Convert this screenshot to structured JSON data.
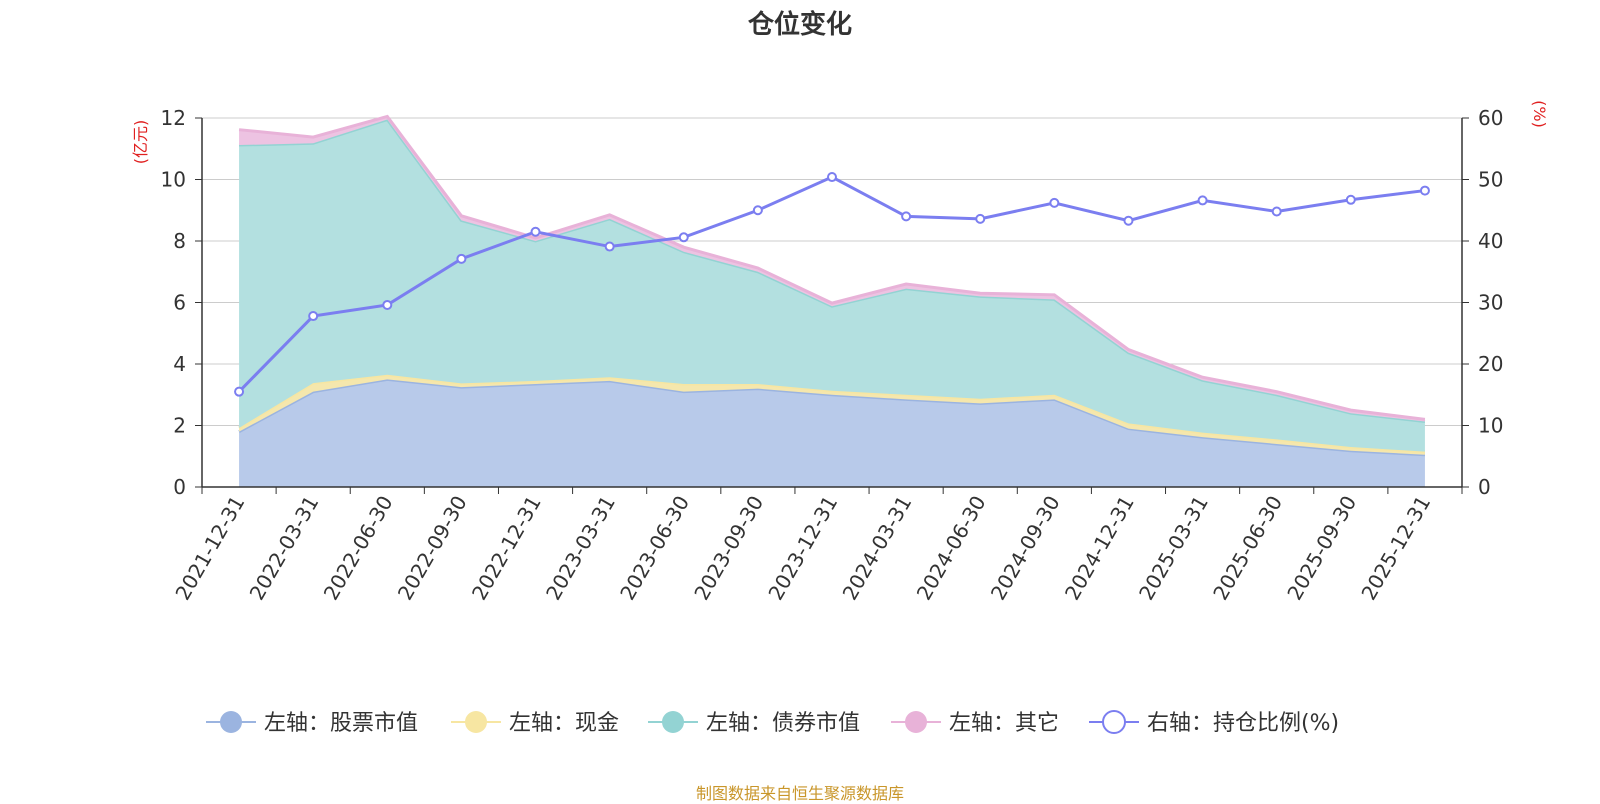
{
  "chart_data": {
    "type": "area",
    "title": "仓位变化",
    "categories": [
      "2021-12-31",
      "2022-03-31",
      "2022-06-30",
      "2022-09-30",
      "2022-12-31",
      "2023-03-31",
      "2023-06-30",
      "2023-09-30",
      "2023-12-31",
      "2024-03-31",
      "2024-06-30",
      "2024-09-30",
      "2024-12-31",
      "2025-03-31",
      "2025-06-30",
      "2025-09-30",
      "2025-12-31"
    ],
    "left_axis": {
      "unit": "(亿元)",
      "ylim": [
        0,
        12
      ],
      "ticks": [
        "0",
        "2",
        "4",
        "6",
        "8",
        "10",
        "12"
      ]
    },
    "right_axis": {
      "unit": "(%)",
      "ylim": [
        0,
        60
      ],
      "ticks": [
        "0",
        "10",
        "20",
        "30",
        "40",
        "50",
        "60"
      ]
    },
    "series": [
      {
        "name": "左轴：股票市值",
        "axis": "left",
        "stack": true,
        "color": "#9bb4e0",
        "fill": "#b8caea",
        "values": [
          1.8,
          3.1,
          3.5,
          3.25,
          3.35,
          3.45,
          3.1,
          3.2,
          3.0,
          2.85,
          2.72,
          2.85,
          1.9,
          1.62,
          1.4,
          1.18,
          1.05
        ]
      },
      {
        "name": "左轴：现金",
        "axis": "left",
        "stack": true,
        "color": "#f7e6a2",
        "fill": "#f5e7ad",
        "values": [
          0.12,
          0.28,
          0.15,
          0.12,
          0.1,
          0.12,
          0.25,
          0.15,
          0.13,
          0.15,
          0.15,
          0.15,
          0.17,
          0.15,
          0.15,
          0.12,
          0.1
        ]
      },
      {
        "name": "左轴：债券市值",
        "axis": "left",
        "stack": true,
        "color": "#93d3d3",
        "fill": "#b3e0e0",
        "values": [
          9.2,
          7.8,
          8.3,
          5.3,
          4.55,
          5.15,
          4.3,
          3.65,
          2.75,
          3.45,
          3.33,
          3.1,
          2.3,
          1.7,
          1.45,
          1.1,
          0.98
        ]
      },
      {
        "name": "左轴：其它",
        "axis": "left",
        "stack": true,
        "color": "#e8b2d8",
        "fill": "#edc3e2",
        "values": [
          0.5,
          0.2,
          0.1,
          0.15,
          0.1,
          0.13,
          0.15,
          0.12,
          0.1,
          0.15,
          0.1,
          0.15,
          0.1,
          0.1,
          0.1,
          0.1,
          0.07
        ]
      },
      {
        "name": "右轴：持仓比例(%)",
        "axis": "right",
        "type": "line",
        "color": "#7b7ef0",
        "values": [
          15.5,
          27.8,
          29.6,
          37.1,
          41.5,
          39.1,
          40.6,
          45.0,
          50.4,
          44.0,
          43.6,
          46.2,
          43.3,
          46.6,
          44.8,
          46.7,
          48.2
        ]
      }
    ]
  },
  "footer": {
    "source": "制图数据来自恒生聚源数据库"
  }
}
